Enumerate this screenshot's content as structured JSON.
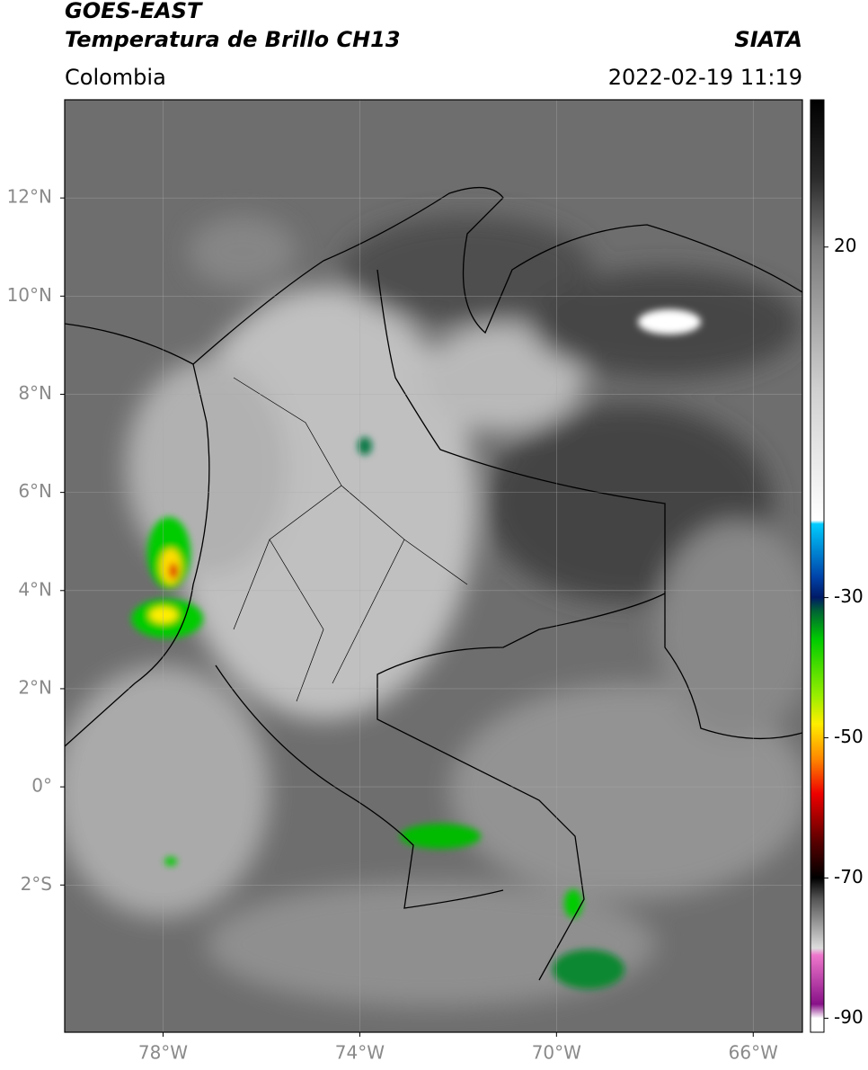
{
  "header": {
    "title": "GOES-EAST",
    "subtitle": "Temperatura de Brillo CH13",
    "source": "SIATA",
    "region": "Colombia",
    "datetime": "2022-02-19 11:19"
  },
  "map": {
    "lonlim": [
      -80,
      -65
    ],
    "latlim": [
      -5,
      14
    ],
    "grid": true,
    "xticks": [
      {
        "value": -78,
        "label": "78°W"
      },
      {
        "value": -74,
        "label": "74°W"
      },
      {
        "value": -70,
        "label": "70°W"
      },
      {
        "value": -66,
        "label": "66°W"
      }
    ],
    "yticks": [
      {
        "value": 12,
        "label": "12°N"
      },
      {
        "value": 10,
        "label": "10°N"
      },
      {
        "value": 8,
        "label": "8°N"
      },
      {
        "value": 6,
        "label": "6°N"
      },
      {
        "value": 4,
        "label": "4°N"
      },
      {
        "value": 2,
        "label": "2°N"
      },
      {
        "value": 0,
        "label": "0°"
      },
      {
        "value": -2,
        "label": "2°S"
      }
    ]
  },
  "colorbar": {
    "lim": [
      -92,
      41
    ],
    "ticks": [
      20,
      -30,
      -50,
      -70,
      -90
    ],
    "colormap": [
      [
        41,
        "#000000"
      ],
      [
        30,
        "#2a2a2a"
      ],
      [
        20,
        "#7a7a7a"
      ],
      [
        0,
        "#cfcfcf"
      ],
      [
        -19,
        "#ffffff"
      ],
      [
        -19.5,
        "#00ccff"
      ],
      [
        -27,
        "#0044aa"
      ],
      [
        -30,
        "#001a66"
      ],
      [
        -32,
        "#006633"
      ],
      [
        -36,
        "#00cc00"
      ],
      [
        -44,
        "#99ee00"
      ],
      [
        -48,
        "#ffee00"
      ],
      [
        -53,
        "#ff8800"
      ],
      [
        -58,
        "#ee0000"
      ],
      [
        -65,
        "#550000"
      ],
      [
        -70,
        "#000000"
      ],
      [
        -73,
        "#555555"
      ],
      [
        -80,
        "#dddddd"
      ],
      [
        -81,
        "#ee77cc"
      ],
      [
        -88,
        "#881188"
      ],
      [
        -90,
        "#ffffff"
      ],
      [
        -92,
        "#ffffff"
      ]
    ]
  }
}
